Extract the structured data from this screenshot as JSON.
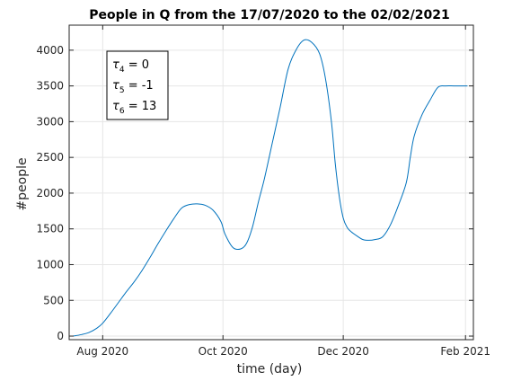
{
  "chart_data": {
    "type": "line",
    "title": "People in Q from the 17/07/2020 to the 02/02/2021",
    "xlabel": "time (day)",
    "ylabel": "#people",
    "xlim": [
      "2020-07-17",
      "2021-02-02"
    ],
    "ylim": [
      -50,
      4350
    ],
    "grid": true,
    "colors": {
      "line": "#0072bd",
      "grid": "#e6e6e6",
      "axes": "#262626"
    },
    "x_ticks": [
      {
        "date": "2020-08-01",
        "label": "Aug 2020"
      },
      {
        "date": "2020-10-01",
        "label": "Oct 2020"
      },
      {
        "date": "2020-12-01",
        "label": "Dec 2020"
      },
      {
        "date": "2021-02-01",
        "label": "Feb 2021"
      }
    ],
    "y_ticks": [
      0,
      500,
      1000,
      1500,
      2000,
      2500,
      3000,
      3500,
      4000
    ],
    "annotation": {
      "lines": [
        {
          "sym": "τ",
          "sub": "4",
          "text": " = 0"
        },
        {
          "sym": "τ",
          "sub": "5",
          "text": " = -1"
        },
        {
          "sym": "τ",
          "sub": "6",
          "text": " = 13"
        }
      ]
    },
    "series": [
      {
        "x": [
          "2020-07-17",
          "2020-07-21",
          "2020-07-25",
          "2020-07-29",
          "2020-08-01",
          "2020-08-05",
          "2020-08-09",
          "2020-08-13",
          "2020-08-17",
          "2020-08-21",
          "2020-08-25",
          "2020-08-29",
          "2020-09-02",
          "2020-09-06",
          "2020-09-10",
          "2020-09-14",
          "2020-09-18",
          "2020-09-22",
          "2020-09-26",
          "2020-09-30",
          "2020-10-02",
          "2020-10-06",
          "2020-10-10",
          "2020-10-13",
          "2020-10-16",
          "2020-10-19",
          "2020-10-22",
          "2020-10-26",
          "2020-10-30",
          "2020-11-03",
          "2020-11-07",
          "2020-11-11",
          "2020-11-15",
          "2020-11-19",
          "2020-11-22",
          "2020-11-25",
          "2020-11-27",
          "2020-11-29",
          "2020-12-01",
          "2020-12-03",
          "2020-12-05",
          "2020-12-08",
          "2020-12-11",
          "2020-12-14",
          "2020-12-17",
          "2020-12-21",
          "2020-12-25",
          "2020-12-29",
          "2021-01-02",
          "2021-01-04",
          "2021-01-06",
          "2021-01-10",
          "2021-01-14",
          "2021-01-18",
          "2021-01-22",
          "2021-01-26",
          "2021-01-30",
          "2021-02-02"
        ],
        "y": [
          0,
          20,
          50,
          110,
          180,
          320,
          470,
          620,
          760,
          920,
          1100,
          1290,
          1470,
          1640,
          1790,
          1840,
          1850,
          1830,
          1760,
          1600,
          1430,
          1240,
          1220,
          1300,
          1530,
          1880,
          2200,
          2700,
          3200,
          3730,
          4000,
          4140,
          4110,
          3950,
          3600,
          3000,
          2400,
          1950,
          1650,
          1520,
          1460,
          1400,
          1350,
          1340,
          1350,
          1390,
          1560,
          1830,
          2150,
          2500,
          2800,
          3100,
          3300,
          3480,
          3500,
          3500,
          3500,
          3500
        ]
      }
    ]
  }
}
